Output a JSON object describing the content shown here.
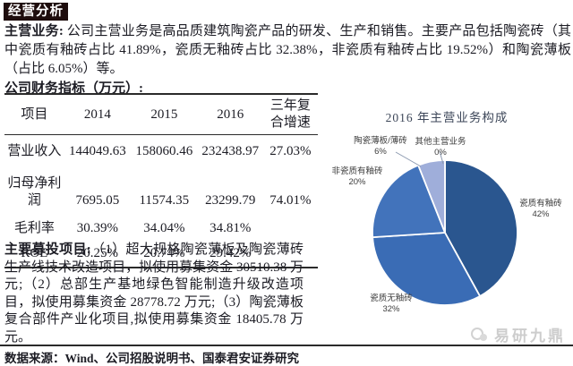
{
  "header": {
    "section_title": "经营分析"
  },
  "analysis": {
    "main_business_label": "主营业务:",
    "main_business_text": " 公司主营业务是高品质建筑陶瓷产品的研发、生产和销售。主要产品包括陶瓷砖（其中瓷质有釉砖占比 41.89%，瓷质无釉砖占比 32.38%，非瓷质有釉砖占比 19.52%）和陶瓷薄板（占比 6.05%）等。",
    "financial_heading": "公司财务指标（万元）:",
    "fundraising_label": "主要募投项目:",
    "fundraising_text": "（1）超大规格陶瓷薄板及陶瓷薄砖生产线技术改造项目，拟使用募集资金 30510.38 万元;（2）总部生产基地绿色智能制造升级改造项目，拟使用募集资金 28778.72 万元;（3）陶瓷薄板复合部件产业化项目,拟使用募集资金 18405.78 万元。"
  },
  "table": {
    "headers": [
      "项目",
      "2014",
      "2015",
      "2016",
      "三年复合增速"
    ],
    "rows": [
      [
        "营业收入",
        "144049.63",
        "158060.46",
        "232438.97",
        "27.03%"
      ],
      [
        "归母净利润",
        "7695.05",
        "11574.35",
        "23299.79",
        "74.01%"
      ],
      [
        "毛利率",
        "30.39%",
        "34.04%",
        "34.81%",
        ""
      ],
      [
        "ROE",
        "20.25%",
        "20.74%",
        "29.42%",
        ""
      ]
    ]
  },
  "chart_data": {
    "type": "pie",
    "title": "2016 年主营业务构成",
    "labels": [
      "瓷质有釉砖",
      "瓷质无釉砖",
      "非瓷质有釉砖",
      "陶瓷薄板/薄砖",
      "其他主营业务"
    ],
    "values": [
      42,
      32,
      20,
      6,
      0
    ],
    "pct_labels": [
      "42%",
      "32%",
      "20%",
      "6%",
      "0%"
    ],
    "colors": [
      "#2A568F",
      "#3A6CB5",
      "#4273BB",
      "#9FAEDA",
      "#C6CFE9"
    ],
    "start_angle_deg": 0,
    "direction": "clockwise",
    "legend_position": "none",
    "data_labels": "outside"
  },
  "footer": {
    "source_text": "数据来源：Wind、公司招股说明书、国泰君安证券研究",
    "watermark": "易研九鼎"
  }
}
